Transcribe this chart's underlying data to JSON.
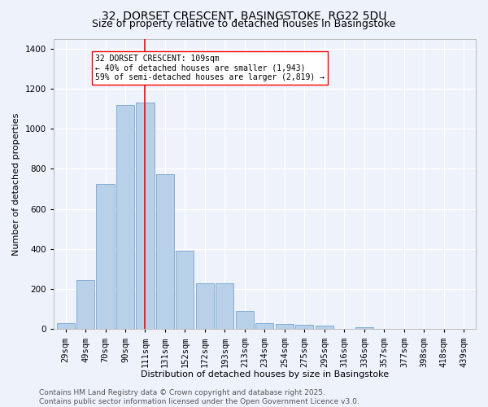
{
  "title": "32, DORSET CRESCENT, BASINGSTOKE, RG22 5DU",
  "subtitle": "Size of property relative to detached houses in Basingstoke",
  "xlabel": "Distribution of detached houses by size in Basingstoke",
  "ylabel": "Number of detached properties",
  "categories": [
    "29sqm",
    "49sqm",
    "70sqm",
    "90sqm",
    "111sqm",
    "131sqm",
    "152sqm",
    "172sqm",
    "193sqm",
    "213sqm",
    "234sqm",
    "254sqm",
    "275sqm",
    "295sqm",
    "316sqm",
    "336sqm",
    "357sqm",
    "377sqm",
    "398sqm",
    "418sqm",
    "439sqm"
  ],
  "values": [
    30,
    245,
    725,
    1120,
    1130,
    775,
    390,
    230,
    230,
    90,
    30,
    25,
    20,
    18,
    0,
    10,
    0,
    0,
    0,
    0,
    0
  ],
  "bar_color": "#b8d0e8",
  "bar_edge_color": "#6699cc",
  "vline_x_index": 4,
  "vline_color": "red",
  "annotation_text": "32 DORSET CRESCENT: 109sqm\n← 40% of detached houses are smaller (1,943)\n59% of semi-detached houses are larger (2,819) →",
  "annotation_box_color": "white",
  "annotation_box_edge": "red",
  "ylim": [
    0,
    1450
  ],
  "yticks": [
    0,
    200,
    400,
    600,
    800,
    1000,
    1200,
    1400
  ],
  "bg_color": "#eef2fb",
  "footer_line1": "Contains HM Land Registry data © Crown copyright and database right 2025.",
  "footer_line2": "Contains public sector information licensed under the Open Government Licence v3.0.",
  "title_fontsize": 10,
  "subtitle_fontsize": 9,
  "axis_label_fontsize": 8,
  "tick_fontsize": 7.5,
  "footer_fontsize": 6.5,
  "annotation_fontsize": 7
}
